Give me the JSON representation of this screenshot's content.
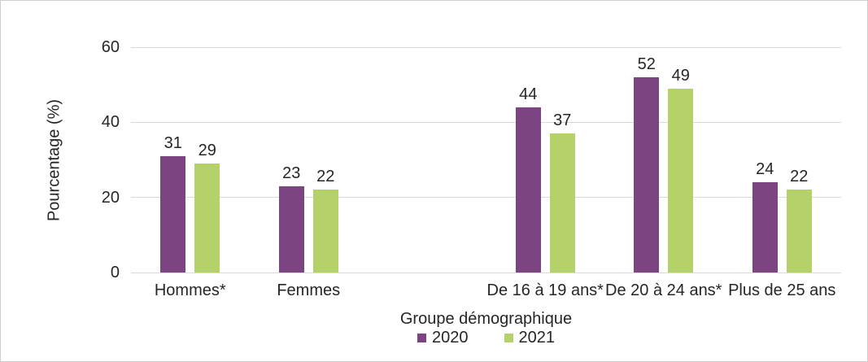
{
  "chart_data": {
    "type": "bar",
    "title": "",
    "xlabel": "Groupe démographique",
    "ylabel": "Pourcentage (%)",
    "categories": [
      "Hommes*",
      "Femmes",
      "De 16 à 19 ans*",
      "De 20 à 24 ans*",
      "Plus de 25 ans"
    ],
    "series": [
      {
        "name": "2020",
        "color": "#7c4480",
        "values": [
          31,
          23,
          44,
          52,
          24
        ]
      },
      {
        "name": "2021",
        "color": "#b5d16a",
        "values": [
          29,
          22,
          37,
          49,
          22
        ]
      }
    ],
    "ylim": [
      0,
      60
    ],
    "yticks": [
      0,
      20,
      40,
      60
    ],
    "grid": true,
    "gridline_color": "#d9d9d9",
    "legend_position": "bottom",
    "layout": {
      "category_slots": [
        0,
        1,
        3,
        4,
        5
      ],
      "total_slots": 6
    }
  }
}
